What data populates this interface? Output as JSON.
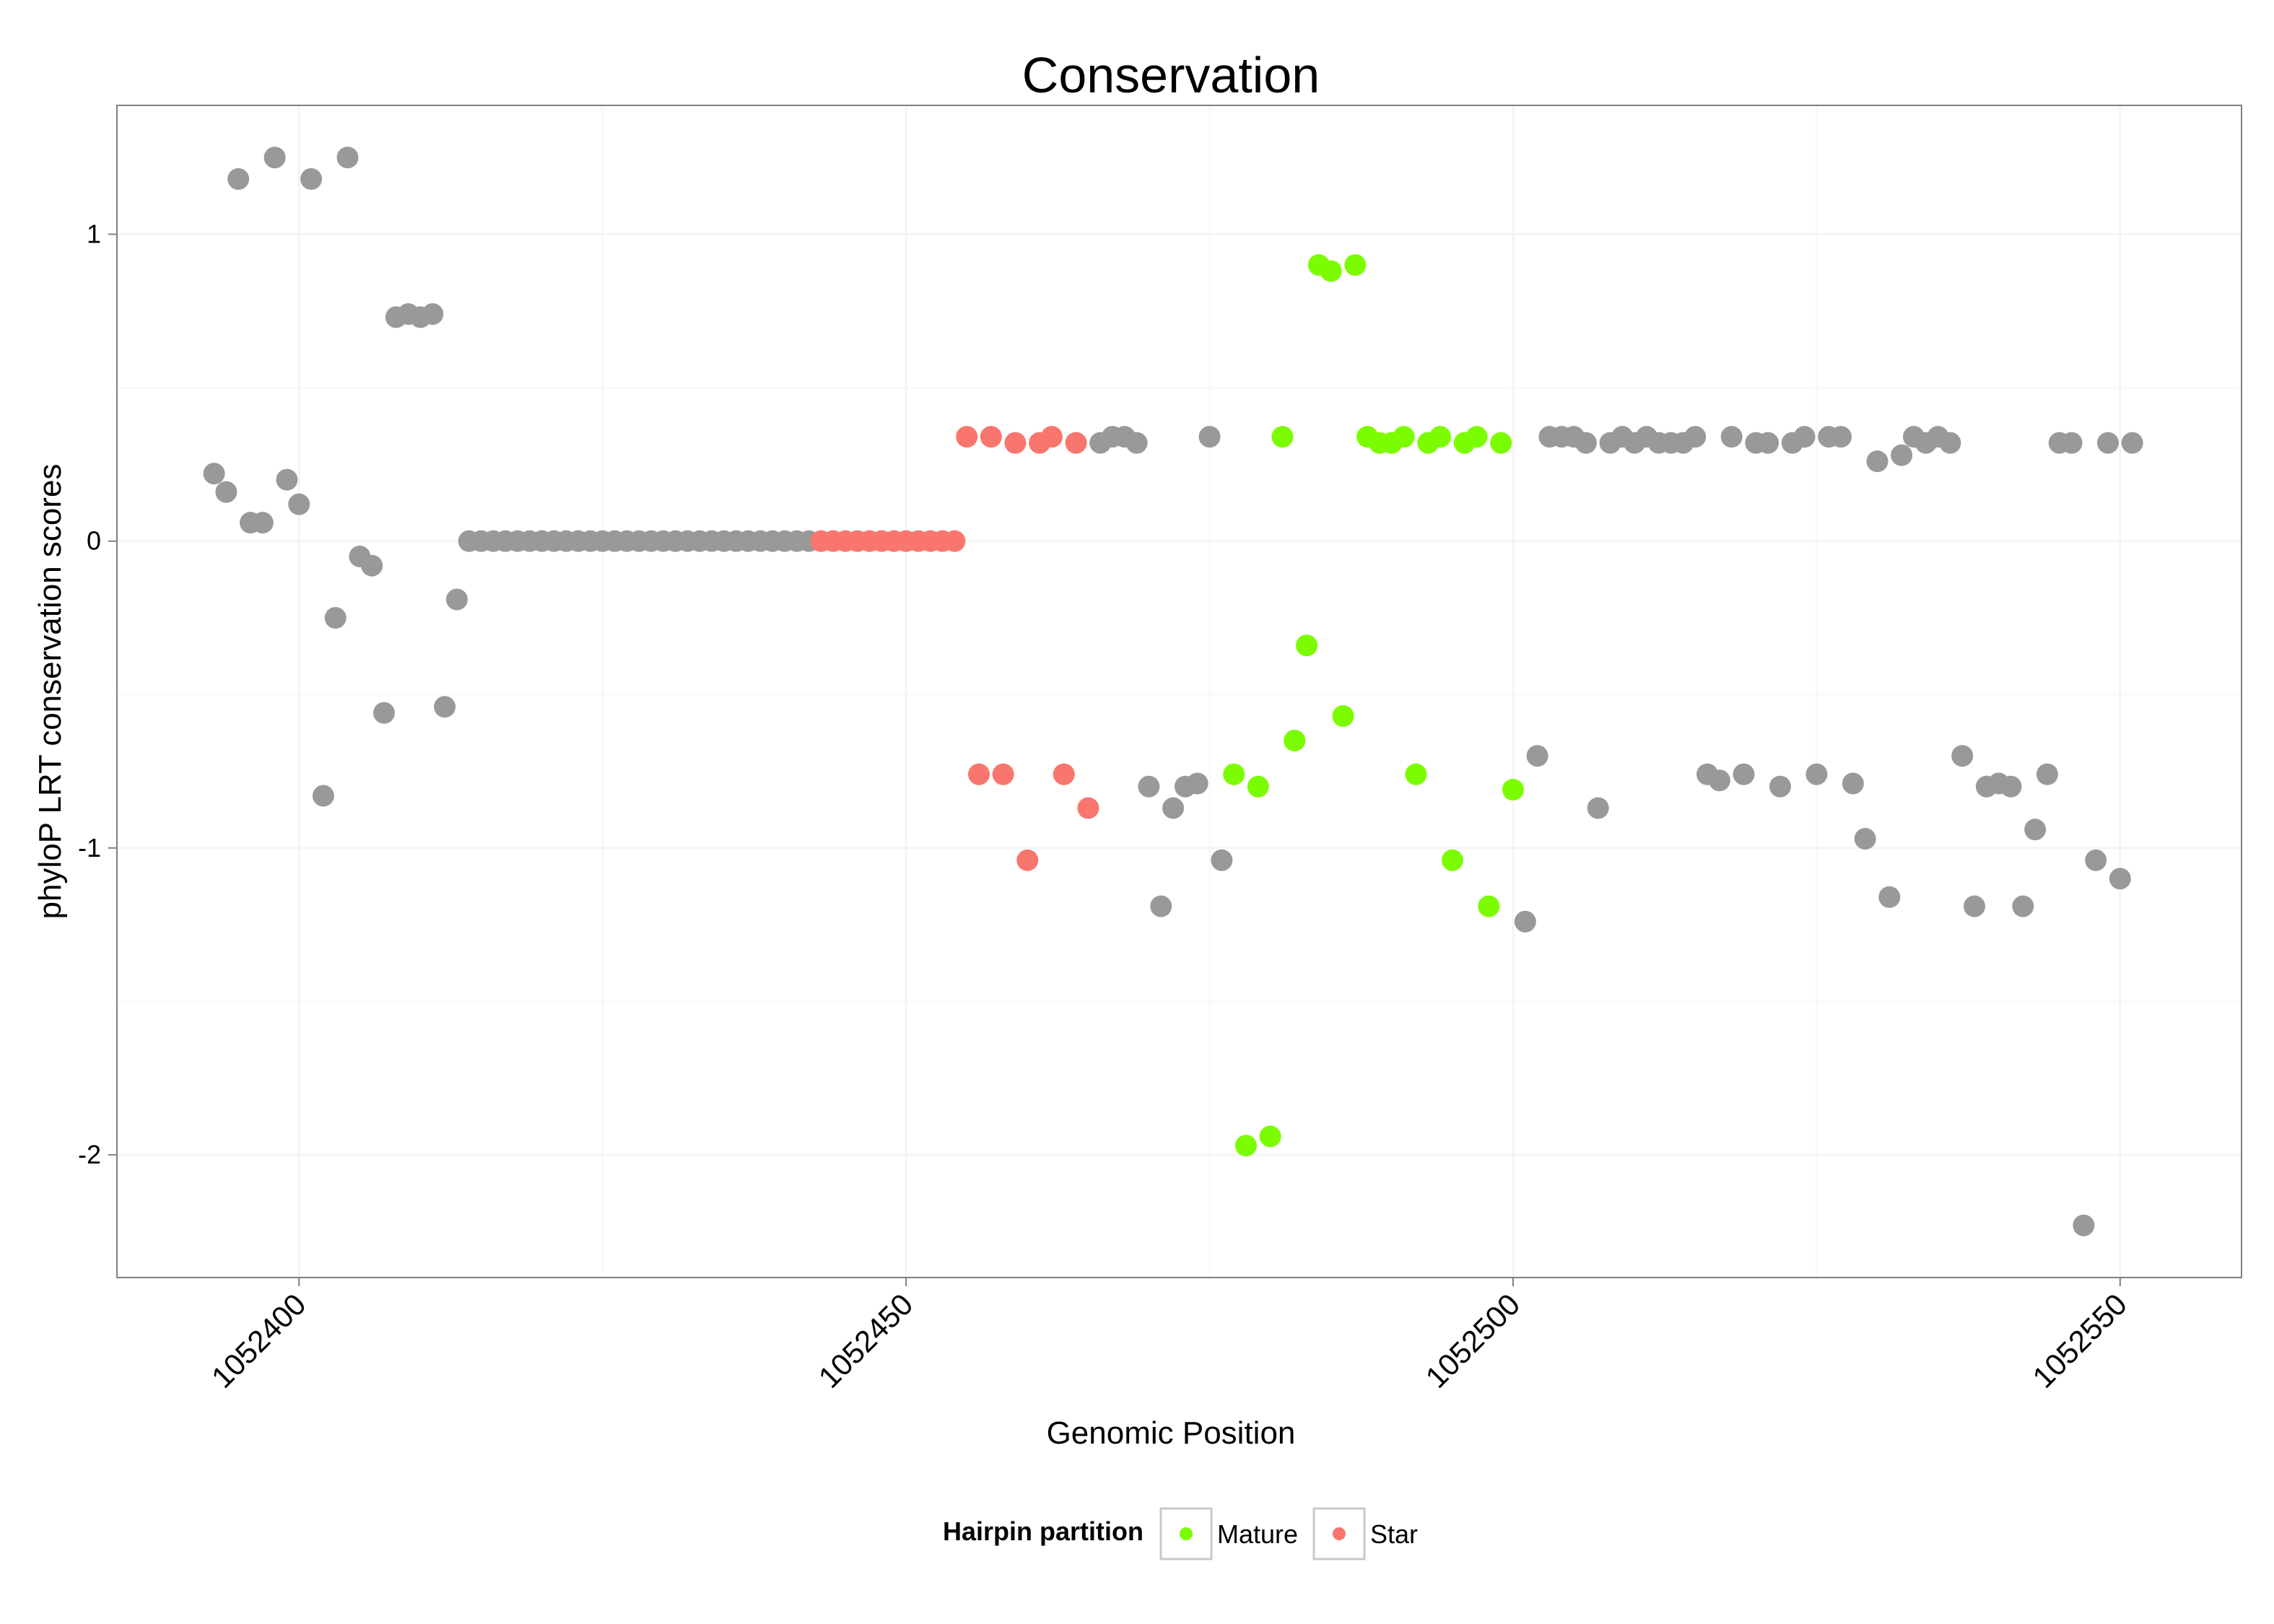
{
  "chart_data": {
    "type": "scatter",
    "title": "Conservation",
    "xlabel": "Genomic Position",
    "ylabel": "phyloP LRT conservation scores",
    "xlim": [
      1052385,
      1052560
    ],
    "ylim": [
      -2.4,
      1.42
    ],
    "x_ticks": [
      1052400,
      1052450,
      1052500,
      1052550
    ],
    "x_tick_labels": [
      "1052400",
      "1052450",
      "1052500",
      "1052550"
    ],
    "y_ticks": [
      -2,
      -1,
      0,
      1
    ],
    "y_tick_labels": [
      "-2",
      "-1",
      "0",
      "1"
    ],
    "grid": true,
    "legend": {
      "title": "Hairpin partition",
      "position": "bottom",
      "entries": [
        {
          "label": "Mature",
          "color": "#7CFC00"
        },
        {
          "label": "Star",
          "color": "#F8766D"
        }
      ]
    },
    "colors": {
      "Other": "#999999",
      "Mature": "#7CFC00",
      "Star": "#F8766D"
    },
    "series": [
      {
        "name": "Other",
        "points": [
          [
            1052393,
            0.22
          ],
          [
            1052394,
            0.16
          ],
          [
            1052395,
            1.18
          ],
          [
            1052396,
            0.06
          ],
          [
            1052397,
            0.06
          ],
          [
            1052398,
            1.25
          ],
          [
            1052399,
            0.2
          ],
          [
            1052400,
            0.12
          ],
          [
            1052401,
            1.18
          ],
          [
            1052402,
            -0.83
          ],
          [
            1052403,
            -0.25
          ],
          [
            1052404,
            1.25
          ],
          [
            1052405,
            -0.05
          ],
          [
            1052406,
            -0.08
          ],
          [
            1052407,
            -0.56
          ],
          [
            1052408,
            0.73
          ],
          [
            1052409,
            0.74
          ],
          [
            1052410,
            0.73
          ],
          [
            1052411,
            0.74
          ],
          [
            1052412,
            -0.54
          ],
          [
            1052413,
            -0.19
          ],
          [
            1052414,
            0
          ],
          [
            1052415,
            0
          ],
          [
            1052416,
            0
          ],
          [
            1052417,
            0
          ],
          [
            1052418,
            0
          ],
          [
            1052419,
            0
          ],
          [
            1052420,
            0
          ],
          [
            1052421,
            0
          ],
          [
            1052422,
            0
          ],
          [
            1052423,
            0
          ],
          [
            1052424,
            0
          ],
          [
            1052425,
            0
          ],
          [
            1052426,
            0
          ],
          [
            1052427,
            0
          ],
          [
            1052428,
            0
          ],
          [
            1052429,
            0
          ],
          [
            1052430,
            0
          ],
          [
            1052431,
            0
          ],
          [
            1052432,
            0
          ],
          [
            1052433,
            0
          ],
          [
            1052434,
            0
          ],
          [
            1052435,
            0
          ],
          [
            1052436,
            0
          ],
          [
            1052437,
            0
          ],
          [
            1052438,
            0
          ],
          [
            1052439,
            0
          ],
          [
            1052440,
            0
          ],
          [
            1052441,
            0
          ],
          [
            1052442,
            0
          ],
          [
            1052466,
            0.32
          ],
          [
            1052467,
            0.34
          ],
          [
            1052468,
            0.34
          ],
          [
            1052469,
            0.32
          ],
          [
            1052470,
            -0.8
          ],
          [
            1052471,
            -1.19
          ],
          [
            1052472,
            -0.87
          ],
          [
            1052473,
            -0.8
          ],
          [
            1052474,
            -0.79
          ],
          [
            1052475,
            0.34
          ],
          [
            1052476,
            -1.04
          ],
          [
            1052501,
            -1.24
          ],
          [
            1052502,
            -0.7
          ],
          [
            1052503,
            0.34
          ],
          [
            1052504,
            0.34
          ],
          [
            1052505,
            0.34
          ],
          [
            1052506,
            0.32
          ],
          [
            1052507,
            -0.87
          ],
          [
            1052508,
            0.32
          ],
          [
            1052509,
            0.34
          ],
          [
            1052510,
            0.32
          ],
          [
            1052511,
            0.34
          ],
          [
            1052512,
            0.32
          ],
          [
            1052513,
            0.32
          ],
          [
            1052514,
            0.32
          ],
          [
            1052515,
            0.34
          ],
          [
            1052516,
            -0.76
          ],
          [
            1052517,
            -0.78
          ],
          [
            1052518,
            0.34
          ],
          [
            1052519,
            -0.76
          ],
          [
            1052520,
            0.32
          ],
          [
            1052521,
            0.32
          ],
          [
            1052522,
            -0.8
          ],
          [
            1052523,
            0.32
          ],
          [
            1052524,
            0.34
          ],
          [
            1052525,
            -0.76
          ],
          [
            1052526,
            0.34
          ],
          [
            1052527,
            0.34
          ],
          [
            1052528,
            -0.79
          ],
          [
            1052529,
            -0.97
          ],
          [
            1052530,
            0.26
          ],
          [
            1052531,
            -1.16
          ],
          [
            1052532,
            0.28
          ],
          [
            1052533,
            0.34
          ],
          [
            1052534,
            0.32
          ],
          [
            1052535,
            0.34
          ],
          [
            1052536,
            0.32
          ],
          [
            1052537,
            -0.7
          ],
          [
            1052538,
            -1.19
          ],
          [
            1052539,
            -0.8
          ],
          [
            1052540,
            -0.79
          ],
          [
            1052541,
            -0.8
          ],
          [
            1052542,
            -1.19
          ],
          [
            1052543,
            -0.94
          ],
          [
            1052544,
            -0.76
          ],
          [
            1052545,
            0.32
          ],
          [
            1052546,
            0.32
          ],
          [
            1052547,
            -2.23
          ],
          [
            1052548,
            -1.04
          ],
          [
            1052549,
            0.32
          ],
          [
            1052550,
            -1.1
          ],
          [
            1052551,
            0.32
          ]
        ]
      },
      {
        "name": "Star",
        "points": [
          [
            1052443,
            0
          ],
          [
            1052444,
            0
          ],
          [
            1052445,
            0
          ],
          [
            1052446,
            0
          ],
          [
            1052447,
            0
          ],
          [
            1052448,
            0
          ],
          [
            1052449,
            0
          ],
          [
            1052450,
            0
          ],
          [
            1052451,
            0
          ],
          [
            1052452,
            0
          ],
          [
            1052453,
            0
          ],
          [
            1052454,
            0
          ],
          [
            1052455,
            0.34
          ],
          [
            1052456,
            -0.76
          ],
          [
            1052457,
            0.34
          ],
          [
            1052458,
            -0.76
          ],
          [
            1052459,
            0.32
          ],
          [
            1052460,
            -1.04
          ],
          [
            1052461,
            0.32
          ],
          [
            1052462,
            0.34
          ],
          [
            1052463,
            -0.76
          ],
          [
            1052464,
            0.32
          ],
          [
            1052465,
            -0.87
          ]
        ]
      },
      {
        "name": "Mature",
        "points": [
          [
            1052477,
            -0.76
          ],
          [
            1052478,
            -1.97
          ],
          [
            1052479,
            -0.8
          ],
          [
            1052480,
            -1.94
          ],
          [
            1052481,
            0.34
          ],
          [
            1052482,
            -0.65
          ],
          [
            1052483,
            -0.34
          ],
          [
            1052484,
            0.9
          ],
          [
            1052485,
            0.88
          ],
          [
            1052486,
            -0.57
          ],
          [
            1052487,
            0.9
          ],
          [
            1052488,
            0.34
          ],
          [
            1052489,
            0.32
          ],
          [
            1052490,
            0.32
          ],
          [
            1052491,
            0.34
          ],
          [
            1052492,
            -0.76
          ],
          [
            1052493,
            0.32
          ],
          [
            1052494,
            0.34
          ],
          [
            1052495,
            -1.04
          ],
          [
            1052496,
            0.32
          ],
          [
            1052497,
            0.34
          ],
          [
            1052498,
            -1.19
          ],
          [
            1052499,
            0.32
          ],
          [
            1052500,
            -0.81
          ]
        ]
      }
    ]
  }
}
